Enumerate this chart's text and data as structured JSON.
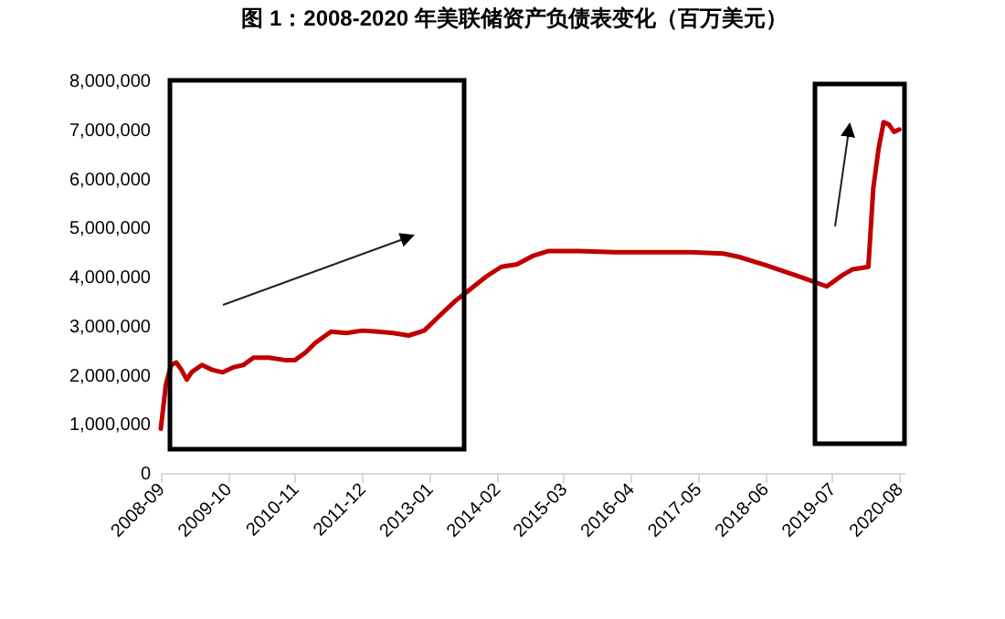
{
  "chart_data": {
    "type": "line",
    "title": "图 1：2008-2020 年美联储资产负债表变化（百万美元）",
    "x": [
      "2008-09",
      "2008-10",
      "2008-11",
      "2008-12",
      "2009-01",
      "2009-02",
      "2009-03",
      "2009-05",
      "2009-07",
      "2009-09",
      "2009-11",
      "2010-01",
      "2010-03",
      "2010-06",
      "2010-09",
      "2010-11",
      "2011-01",
      "2011-03",
      "2011-06",
      "2011-09",
      "2011-12",
      "2012-03",
      "2012-06",
      "2012-09",
      "2012-12",
      "2013-03",
      "2013-06",
      "2013-09",
      "2013-12",
      "2014-03",
      "2014-06",
      "2014-09",
      "2014-12",
      "2015-06",
      "2016-01",
      "2016-08",
      "2017-03",
      "2017-10",
      "2018-01",
      "2018-06",
      "2019-01",
      "2019-06",
      "2019-09",
      "2019-11",
      "2020-02",
      "2020-03",
      "2020-04",
      "2020-05",
      "2020-06",
      "2020-07",
      "2020-08"
    ],
    "series": [
      {
        "color": "#c00000",
        "values": [
          900000,
          1800000,
          2200000,
          2250000,
          2100000,
          1900000,
          2050000,
          2200000,
          2100000,
          2050000,
          2150000,
          2200000,
          2350000,
          2350000,
          2300000,
          2300000,
          2450000,
          2650000,
          2880000,
          2850000,
          2900000,
          2880000,
          2850000,
          2800000,
          2900000,
          3200000,
          3500000,
          3750000,
          4000000,
          4200000,
          4250000,
          4420000,
          4520000,
          4520000,
          4500000,
          4500000,
          4500000,
          4470000,
          4400000,
          4240000,
          3990000,
          3800000,
          4030000,
          4150000,
          4200000,
          5800000,
          6600000,
          7150000,
          7100000,
          6950000,
          7000000
        ]
      }
    ],
    "xlim": [
      "2008-09",
      "2020-09"
    ],
    "xticks": [
      "2008-09",
      "2009-10",
      "2010-11",
      "2011-12",
      "2013-01",
      "2014-02",
      "2015-03",
      "2016-04",
      "2017-05",
      "2018-06",
      "2019-07",
      "2020-08"
    ],
    "ylim": [
      0,
      8000000
    ],
    "yticks": [
      0,
      {
        "value": 1000000,
        "label": "1,000,000"
      },
      {
        "value": 2000000,
        "label": "2,000,000"
      },
      {
        "value": 3000000,
        "label": "3,000,000"
      },
      {
        "value": 4000000,
        "label": "4,000,000"
      },
      {
        "value": 5000000,
        "label": "5,000,000"
      },
      {
        "value": 6000000,
        "label": "6,000,000"
      },
      {
        "value": 7000000,
        "label": "7,000,000"
      },
      {
        "value": 8000000,
        "label": "8,000,000"
      }
    ],
    "grid": false,
    "marker": "none",
    "line_style": "solid"
  }
}
